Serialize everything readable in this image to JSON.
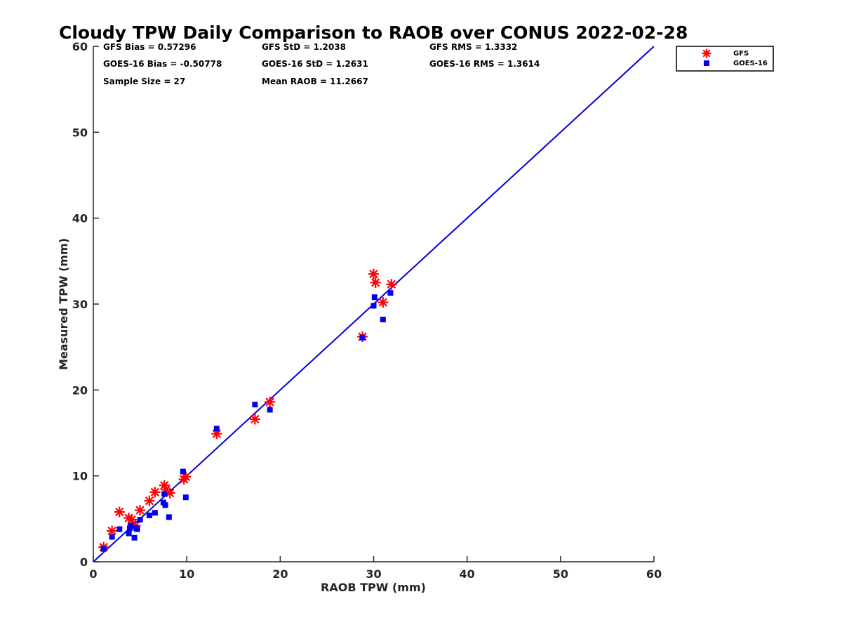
{
  "chart_data": {
    "type": "scatter",
    "title": "Cloudy TPW Daily Comparison to RAOB over CONUS 2022-02-28",
    "xlabel": "RAOB TPW (mm)",
    "ylabel": "Measured TPW (mm)",
    "xlim": [
      0,
      60
    ],
    "ylim": [
      0,
      60
    ],
    "xticks": [
      0,
      10,
      20,
      30,
      40,
      50,
      60
    ],
    "yticks": [
      0,
      10,
      20,
      30,
      40,
      50,
      60
    ],
    "grid": false,
    "legend_position": "top-right, outside plot",
    "reference_line": {
      "from": [
        0,
        0
      ],
      "to": [
        60,
        60
      ],
      "color": "#0000dd"
    },
    "stats": {
      "gfs_bias": "GFS Bias = 0.57296",
      "gfs_std": "GFS StD = 1.2038",
      "gfs_rms": "GFS RMS = 1.3332",
      "goes_bias": "GOES-16 Bias = -0.50778",
      "goes_std": "GOES-16 StD = 1.2631",
      "goes_rms": "GOES-16 RMS = 1.3614",
      "sample_size": "Sample Size = 27",
      "mean_raob": "Mean RAOB = 11.2667"
    },
    "series": [
      {
        "name": "GFS",
        "marker": "asterisk",
        "color": "#ff0000",
        "points": [
          [
            1.1,
            1.7
          ],
          [
            2.0,
            3.6
          ],
          [
            2.8,
            5.8
          ],
          [
            3.8,
            5.1
          ],
          [
            4.1,
            4.9
          ],
          [
            4.5,
            4.2
          ],
          [
            5.0,
            6.0
          ],
          [
            6.0,
            7.1
          ],
          [
            6.6,
            8.1
          ],
          [
            7.6,
            8.9
          ],
          [
            7.8,
            8.4
          ],
          [
            8.2,
            8.0
          ],
          [
            9.7,
            9.6
          ],
          [
            9.9,
            9.9
          ],
          [
            13.2,
            14.9
          ],
          [
            17.3,
            16.6
          ],
          [
            18.9,
            18.6
          ],
          [
            28.8,
            26.2
          ],
          [
            30.0,
            33.5
          ],
          [
            30.2,
            32.5
          ],
          [
            31.0,
            30.2
          ],
          [
            31.9,
            32.3
          ]
        ]
      },
      {
        "name": "GOES-16",
        "marker": "square",
        "color": "#0000ee",
        "points": [
          [
            1.1,
            1.5
          ],
          [
            2.0,
            2.9
          ],
          [
            2.8,
            3.8
          ],
          [
            3.8,
            3.3
          ],
          [
            3.9,
            3.9
          ],
          [
            4.0,
            4.2
          ],
          [
            4.4,
            2.8
          ],
          [
            4.6,
            3.9
          ],
          [
            4.7,
            3.8
          ],
          [
            5.0,
            4.9
          ],
          [
            6.0,
            5.4
          ],
          [
            6.6,
            5.7
          ],
          [
            7.5,
            6.9
          ],
          [
            7.7,
            6.6
          ],
          [
            7.6,
            7.9
          ],
          [
            8.1,
            5.2
          ],
          [
            9.6,
            10.5
          ],
          [
            9.9,
            7.5
          ],
          [
            13.2,
            15.5
          ],
          [
            17.3,
            18.3
          ],
          [
            18.9,
            17.7
          ],
          [
            28.8,
            26.1
          ],
          [
            30.0,
            29.8
          ],
          [
            30.1,
            30.8
          ],
          [
            31.0,
            28.2
          ],
          [
            31.8,
            31.3
          ]
        ]
      }
    ]
  }
}
